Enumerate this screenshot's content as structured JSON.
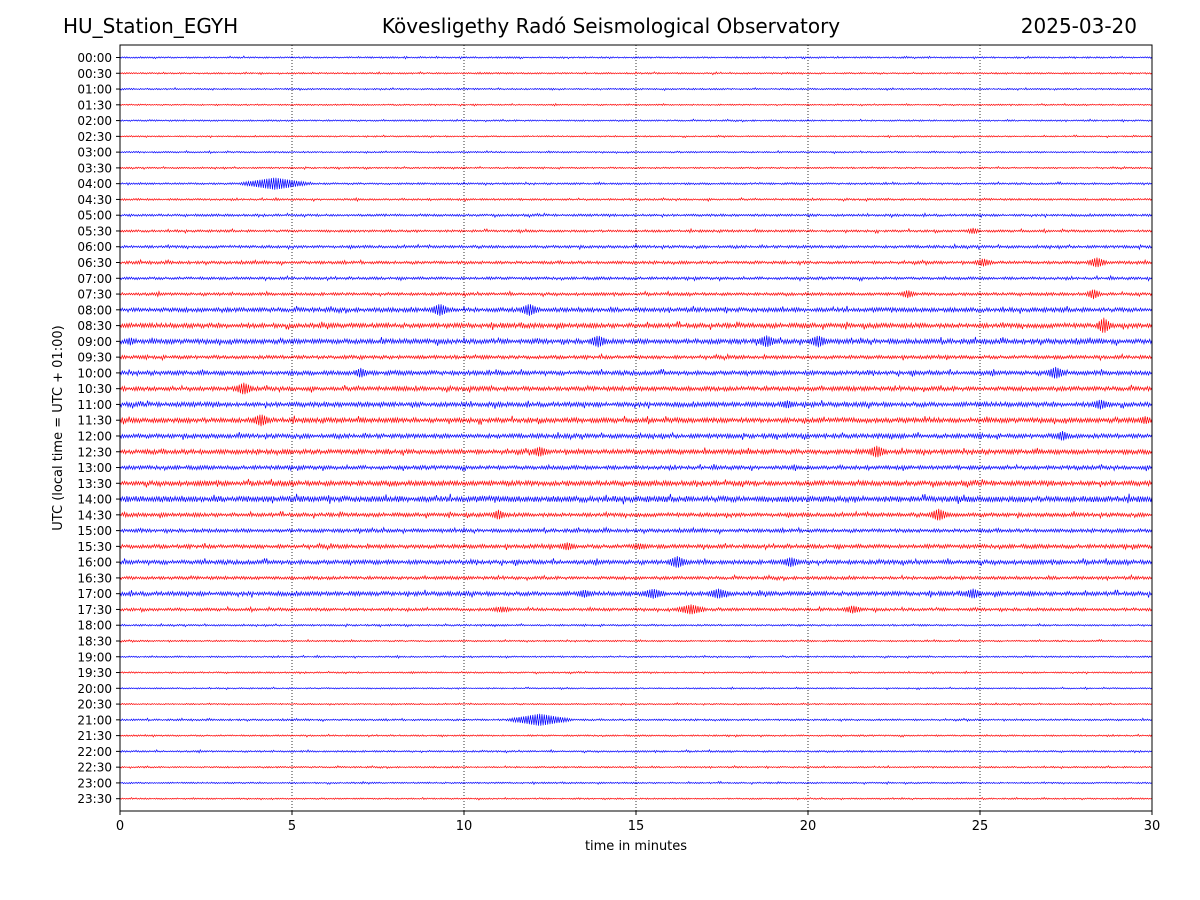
{
  "header": {
    "station": "HU_Station_EGYH",
    "title": "Kövesligethy Radó Seismological Observatory",
    "date": "2025-03-20"
  },
  "chart_data": {
    "type": "line",
    "title": "Kövesligethy Radó Seismological Observatory",
    "xlabel": "time in minutes",
    "ylabel": "UTC (local time = UTC + 01:00)",
    "xlim": [
      0,
      30
    ],
    "xticks": [
      0,
      5,
      10,
      15,
      20,
      25,
      30
    ],
    "grid": "vertical dotted lines at 5-minute ticks",
    "colors": [
      "#0000ff",
      "#ff0000"
    ],
    "rows": [
      {
        "label": "00:00",
        "amp": 0.8,
        "events": []
      },
      {
        "label": "00:30",
        "amp": 0.8,
        "events": []
      },
      {
        "label": "01:00",
        "amp": 0.8,
        "events": []
      },
      {
        "label": "01:30",
        "amp": 0.7,
        "events": []
      },
      {
        "label": "02:00",
        "amp": 0.8,
        "events": []
      },
      {
        "label": "02:30",
        "amp": 0.7,
        "events": []
      },
      {
        "label": "03:00",
        "amp": 0.8,
        "events": []
      },
      {
        "label": "03:30",
        "amp": 0.8,
        "events": []
      },
      {
        "label": "04:00",
        "amp": 1.0,
        "events": [
          [
            4.5,
            6,
            1.2
          ]
        ]
      },
      {
        "label": "04:30",
        "amp": 1.0,
        "events": []
      },
      {
        "label": "05:00",
        "amp": 1.2,
        "events": []
      },
      {
        "label": "05:30",
        "amp": 1.2,
        "events": [
          [
            24.8,
            3,
            0.3
          ]
        ]
      },
      {
        "label": "06:00",
        "amp": 1.4,
        "events": []
      },
      {
        "label": "06:30",
        "amp": 1.5,
        "events": [
          [
            25.1,
            4,
            0.4
          ],
          [
            28.4,
            5,
            0.4
          ]
        ]
      },
      {
        "label": "07:00",
        "amp": 1.4,
        "events": []
      },
      {
        "label": "07:30",
        "amp": 1.5,
        "events": [
          [
            22.9,
            4,
            0.3
          ],
          [
            28.3,
            5,
            0.3
          ]
        ]
      },
      {
        "label": "08:00",
        "amp": 2.2,
        "events": [
          [
            9.3,
            6,
            0.4
          ],
          [
            11.9,
            6,
            0.4
          ]
        ]
      },
      {
        "label": "08:30",
        "amp": 2.4,
        "events": [
          [
            28.6,
            8,
            0.3
          ]
        ]
      },
      {
        "label": "09:00",
        "amp": 2.5,
        "events": [
          [
            0.3,
            4,
            0.3
          ],
          [
            13.9,
            6,
            0.4
          ],
          [
            18.8,
            6,
            0.4
          ],
          [
            20.3,
            6,
            0.4
          ]
        ]
      },
      {
        "label": "09:30",
        "amp": 1.8,
        "events": []
      },
      {
        "label": "10:00",
        "amp": 2.2,
        "events": [
          [
            7.0,
            5,
            0.3
          ],
          [
            27.2,
            6,
            0.4
          ]
        ]
      },
      {
        "label": "10:30",
        "amp": 2.2,
        "events": [
          [
            3.6,
            6,
            0.4
          ]
        ]
      },
      {
        "label": "11:00",
        "amp": 2.4,
        "events": [
          [
            19.4,
            4,
            0.4
          ],
          [
            28.5,
            5,
            0.4
          ]
        ]
      },
      {
        "label": "11:30",
        "amp": 2.5,
        "events": [
          [
            4.1,
            6,
            0.4
          ],
          [
            29.8,
            4,
            0.4
          ]
        ]
      },
      {
        "label": "12:00",
        "amp": 2.2,
        "events": [
          [
            27.4,
            5,
            0.3
          ]
        ]
      },
      {
        "label": "12:30",
        "amp": 2.4,
        "events": [
          [
            12.2,
            5,
            0.4
          ],
          [
            22.0,
            6,
            0.4
          ]
        ]
      },
      {
        "label": "13:00",
        "amp": 2.0,
        "events": []
      },
      {
        "label": "13:30",
        "amp": 2.5,
        "events": []
      },
      {
        "label": "14:00",
        "amp": 3.0,
        "events": []
      },
      {
        "label": "14:30",
        "amp": 2.0,
        "events": [
          [
            11.0,
            5,
            0.3
          ],
          [
            23.8,
            6,
            0.4
          ]
        ]
      },
      {
        "label": "15:00",
        "amp": 1.8,
        "events": []
      },
      {
        "label": "15:30",
        "amp": 2.0,
        "events": [
          [
            13.0,
            4,
            0.4
          ],
          [
            15.1,
            3,
            0.5
          ]
        ]
      },
      {
        "label": "16:00",
        "amp": 2.2,
        "events": [
          [
            16.2,
            6,
            0.4
          ],
          [
            19.5,
            5,
            0.4
          ]
        ]
      },
      {
        "label": "16:30",
        "amp": 1.6,
        "events": []
      },
      {
        "label": "17:00",
        "amp": 2.2,
        "events": [
          [
            13.5,
            4,
            0.4
          ],
          [
            15.5,
            5,
            0.5
          ],
          [
            17.4,
            5,
            0.5
          ],
          [
            24.8,
            5,
            0.4
          ]
        ]
      },
      {
        "label": "17:30",
        "amp": 1.5,
        "events": [
          [
            11.1,
            3,
            0.5
          ],
          [
            16.6,
            5,
            0.6
          ],
          [
            21.3,
            4,
            0.4
          ]
        ]
      },
      {
        "label": "18:00",
        "amp": 0.9,
        "events": []
      },
      {
        "label": "18:30",
        "amp": 0.8,
        "events": []
      },
      {
        "label": "19:00",
        "amp": 0.8,
        "events": []
      },
      {
        "label": "19:30",
        "amp": 0.8,
        "events": [
          [
            8.5,
            1,
            0.3
          ]
        ]
      },
      {
        "label": "20:00",
        "amp": 0.7,
        "events": []
      },
      {
        "label": "20:30",
        "amp": 0.7,
        "events": []
      },
      {
        "label": "21:00",
        "amp": 0.9,
        "events": [
          [
            12.2,
            6,
            1.1
          ]
        ]
      },
      {
        "label": "21:30",
        "amp": 0.8,
        "events": []
      },
      {
        "label": "22:00",
        "amp": 0.9,
        "events": []
      },
      {
        "label": "22:30",
        "amp": 0.8,
        "events": []
      },
      {
        "label": "23:00",
        "amp": 0.8,
        "events": []
      },
      {
        "label": "23:30",
        "amp": 0.7,
        "events": []
      }
    ]
  }
}
